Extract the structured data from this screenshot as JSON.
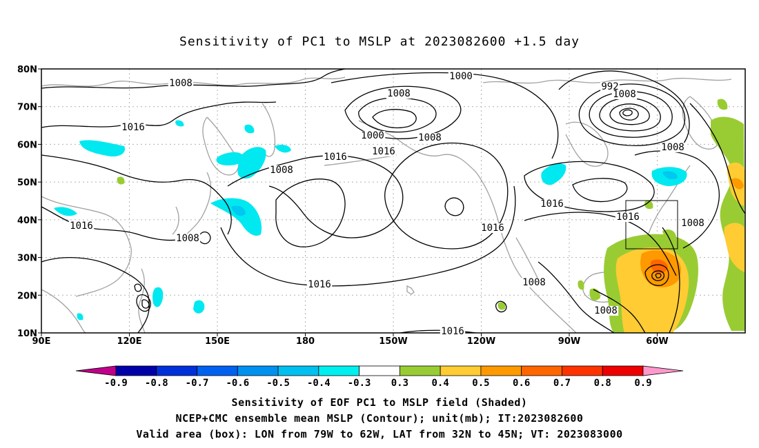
{
  "title": "Sensitivity of PC1 to MSLP at 2023082600 +1.5 day",
  "map": {
    "lon_range": [
      "90E",
      "30W"
    ],
    "lat_range": [
      "10N",
      "80N"
    ],
    "lat_labels": [
      "80N",
      "70N",
      "60N",
      "50N",
      "40N",
      "30N",
      "20N",
      "10N"
    ],
    "lon_labels": [
      "90E",
      "120E",
      "150E",
      "180",
      "150W",
      "120W",
      "90W",
      "60W"
    ],
    "grid": "dotted",
    "contour_color": "#000000",
    "coast_color": "#a0a0a0",
    "valid_box": {
      "lon_from": "79W",
      "lon_to": "62W",
      "lat_from": "32N",
      "lat_to": "45N"
    },
    "contour_labels": [
      "1008",
      "1016",
      "1008",
      "1000",
      "992",
      "1008",
      "1000",
      "1016",
      "1008",
      "1016",
      "1008",
      "1016",
      "1016",
      "1008",
      "1008",
      "1016",
      "1016",
      "1016",
      "1008",
      "1008",
      "1008",
      "1016"
    ]
  },
  "colorbar": {
    "labels": [
      "-0.9",
      "-0.8",
      "-0.7",
      "-0.6",
      "-0.5",
      "-0.4",
      "-0.3",
      "0.3",
      "0.4",
      "0.5",
      "0.6",
      "0.7",
      "0.8",
      "0.9"
    ],
    "colors": [
      "#c0008a",
      "#0000a8",
      "#0030d8",
      "#0060f0",
      "#0090f0",
      "#00c0f0",
      "#00f0f0",
      "#ffffff",
      "#99cc33",
      "#ffcc33",
      "#ff9900",
      "#ff6600",
      "#ff3300",
      "#ee0000",
      "#ff99cc"
    ]
  },
  "shading_colors": {
    "neg_light": "#00e8f0",
    "neg_mid": "#00c8f0",
    "pos_green": "#99cc33",
    "pos_yellow": "#ffcc33",
    "pos_orange": "#ff9900",
    "pos_dark": "#ff6600"
  },
  "footer": [
    "Sensitivity of EOF PC1 to MSLP field (Shaded)",
    "NCEP+CMC ensemble mean MSLP (Contour); unit(mb); IT:2023082600",
    "Valid area (box): LON from 79W to 62W, LAT from 32N to 45N; VT: 2023083000"
  ]
}
